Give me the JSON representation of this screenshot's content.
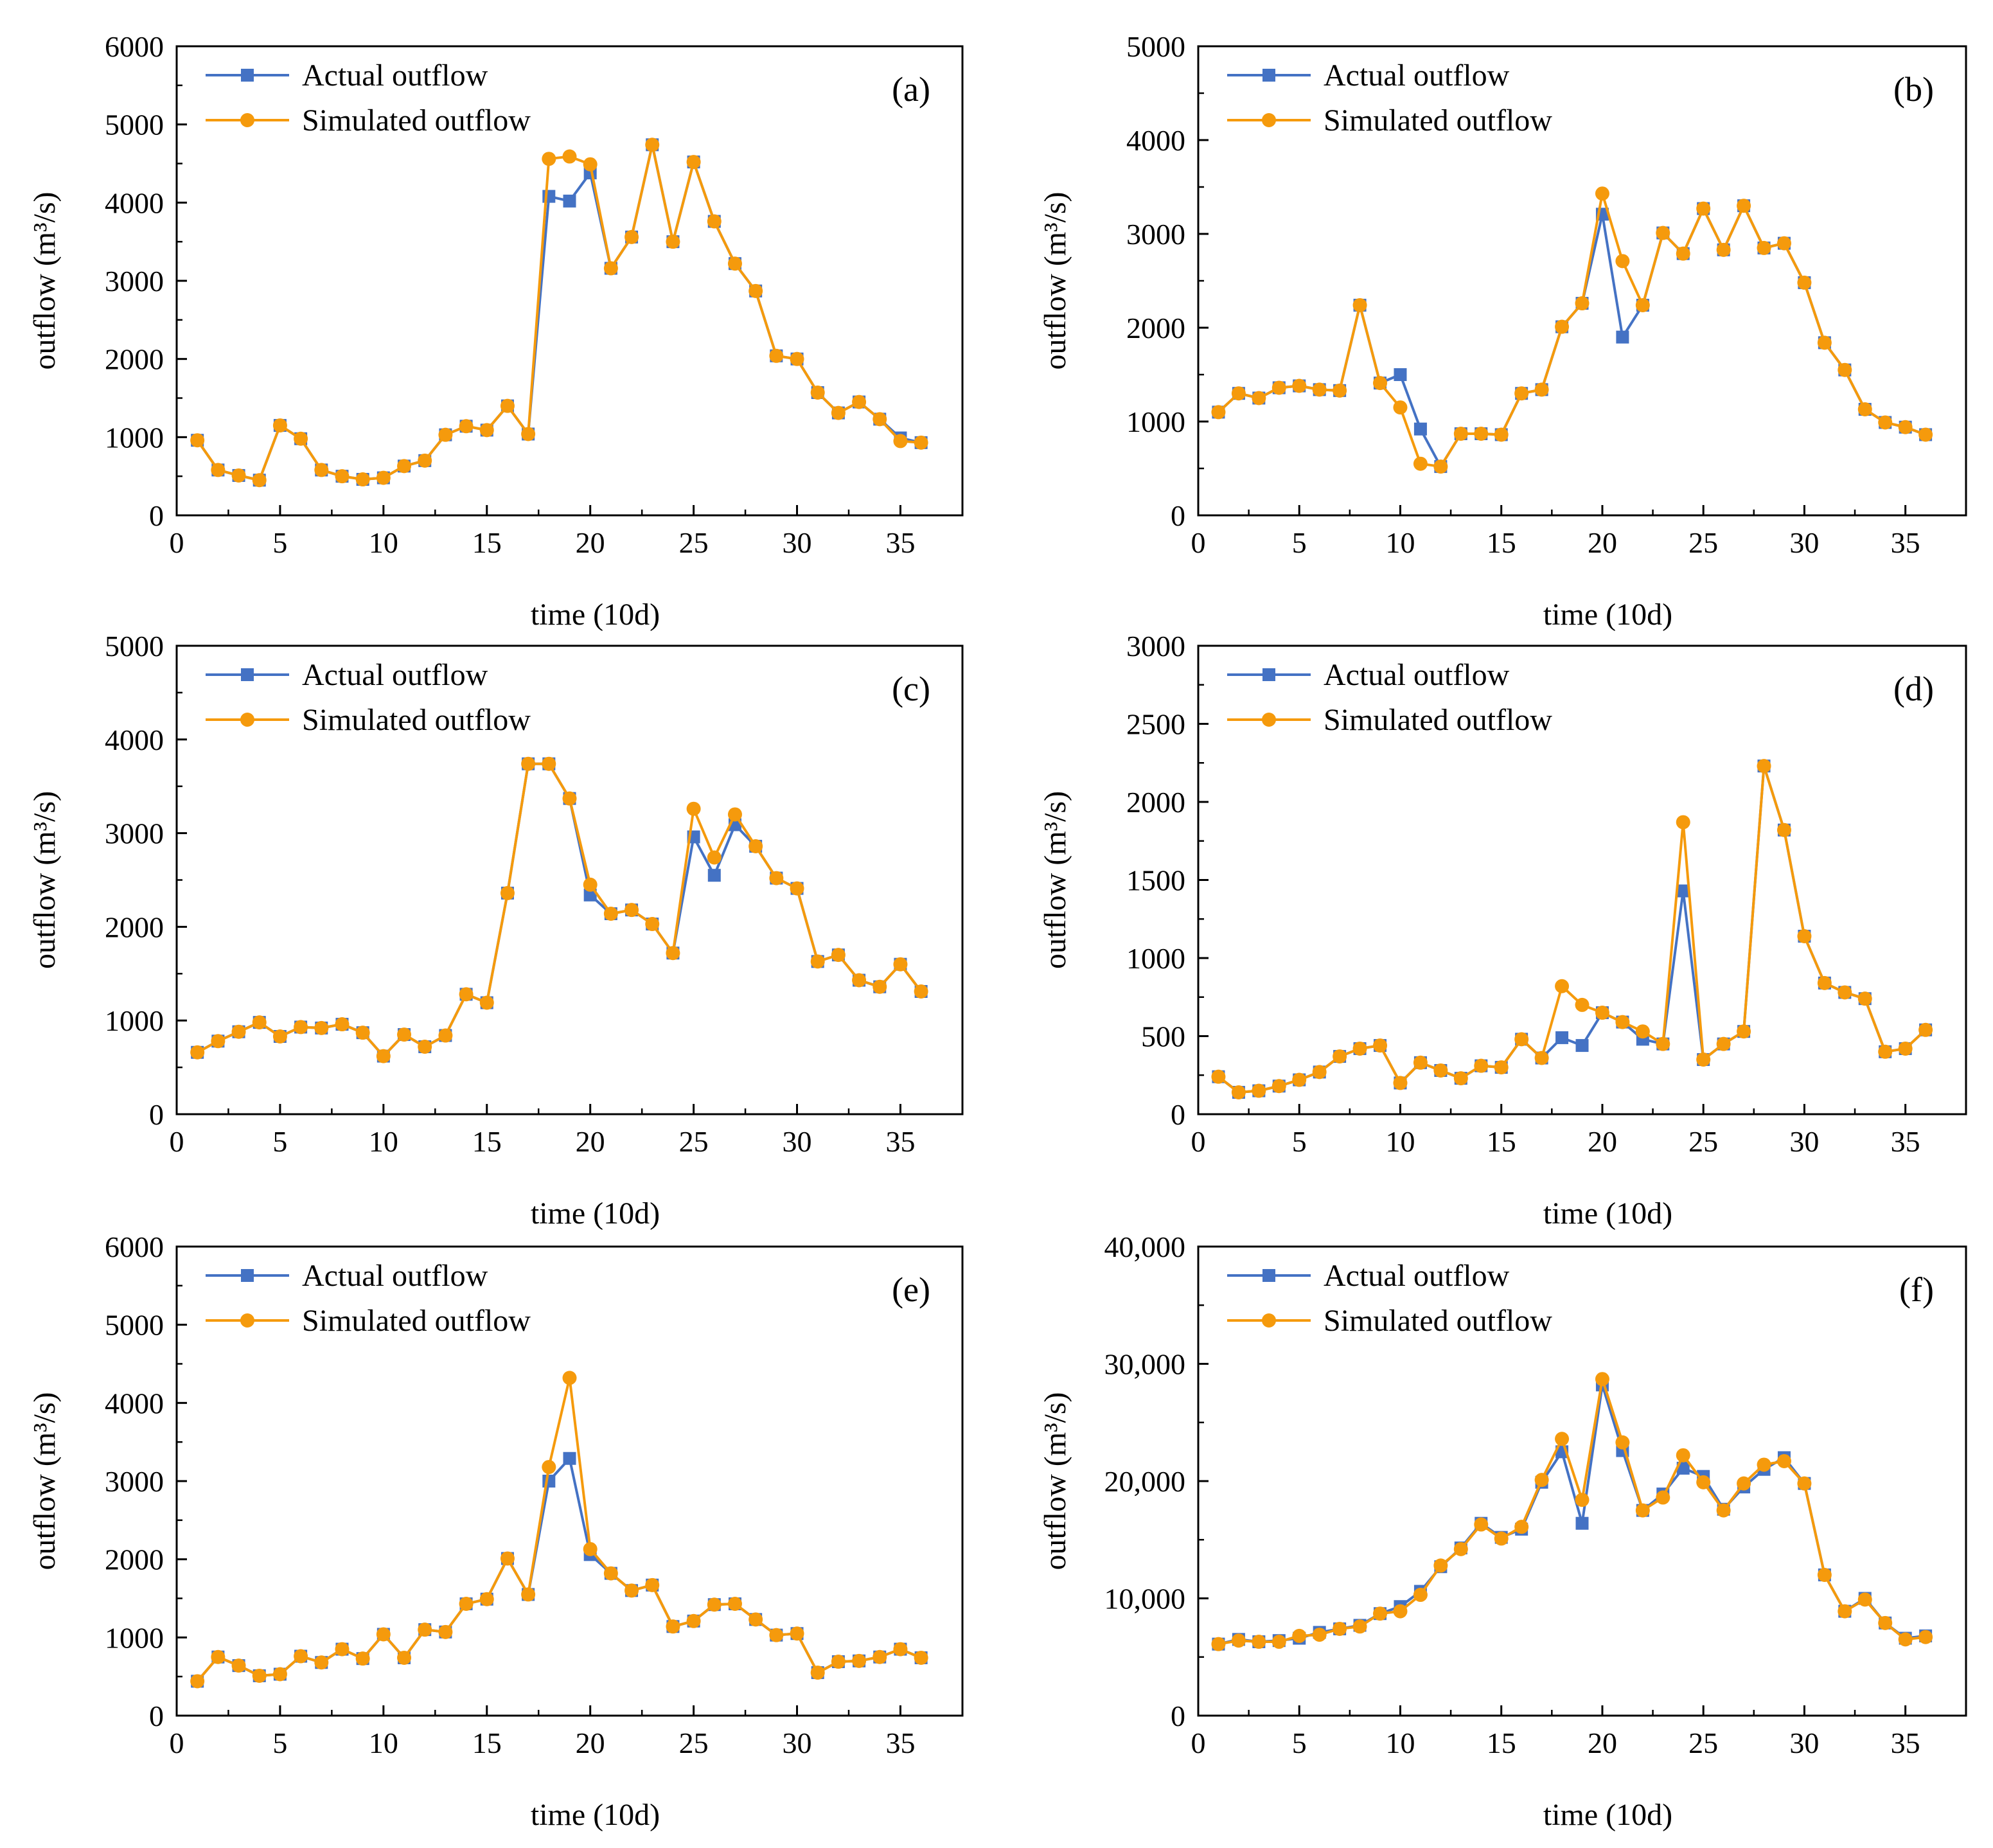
{
  "figure": {
    "colors": {
      "actual": "#4472c4",
      "simulated": "#f59a0c",
      "axis": "#000000",
      "background": "#ffffff"
    },
    "markers": {
      "actual": "square",
      "simulated": "circle"
    }
  },
  "chart_data": [
    {
      "type": "line",
      "label": "(a)",
      "xlabel": "time (10d)",
      "ylabel": "outflow (m³/s)",
      "xlim": [
        0,
        38
      ],
      "ylim": [
        0,
        6000
      ],
      "xticks": [
        0,
        5,
        10,
        15,
        20,
        25,
        30,
        35
      ],
      "yticks": [
        0,
        1000,
        2000,
        3000,
        4000,
        5000,
        6000
      ],
      "ytick_labels": [
        "0",
        "1000",
        "2000",
        "3000",
        "4000",
        "5000",
        "6000"
      ],
      "grid": false,
      "legend": "top-left",
      "x": [
        1,
        2,
        3,
        4,
        5,
        6,
        7,
        8,
        9,
        10,
        11,
        12,
        13,
        14,
        15,
        16,
        17,
        18,
        19,
        20,
        21,
        22,
        23,
        24,
        25,
        26,
        27,
        28,
        29,
        30,
        31,
        32,
        33,
        34,
        35,
        36
      ],
      "series": [
        {
          "name": "Actual outflow",
          "values": [
            960,
            580,
            510,
            450,
            1150,
            980,
            580,
            500,
            460,
            480,
            630,
            700,
            1030,
            1140,
            1090,
            1400,
            1040,
            4080,
            4020,
            4380,
            3160,
            3560,
            4740,
            3500,
            4520,
            3760,
            3220,
            2870,
            2040,
            2000,
            1570,
            1310,
            1450,
            1230,
            990,
            930
          ]
        },
        {
          "name": "Simulated outflow",
          "values": [
            960,
            580,
            510,
            450,
            1150,
            980,
            580,
            500,
            460,
            480,
            630,
            700,
            1030,
            1140,
            1090,
            1400,
            1040,
            4560,
            4590,
            4490,
            3160,
            3560,
            4740,
            3500,
            4520,
            3760,
            3220,
            2870,
            2040,
            2000,
            1570,
            1310,
            1450,
            1230,
            950,
            930
          ]
        }
      ]
    },
    {
      "type": "line",
      "label": "(b)",
      "xlabel": "time (10d)",
      "ylabel": "outflow (m³/s)",
      "xlim": [
        0,
        38
      ],
      "ylim": [
        0,
        5000
      ],
      "xticks": [
        0,
        5,
        10,
        15,
        20,
        25,
        30,
        35
      ],
      "yticks": [
        0,
        1000,
        2000,
        3000,
        4000,
        5000
      ],
      "ytick_labels": [
        "0",
        "1000",
        "2000",
        "3000",
        "4000",
        "5000"
      ],
      "grid": false,
      "legend": "top-left",
      "x": [
        1,
        2,
        3,
        4,
        5,
        6,
        7,
        8,
        9,
        10,
        11,
        12,
        13,
        14,
        15,
        16,
        17,
        18,
        19,
        20,
        21,
        22,
        23,
        24,
        25,
        26,
        27,
        28,
        29,
        30,
        31,
        32,
        33,
        34,
        35,
        36
      ],
      "series": [
        {
          "name": "Actual outflow",
          "values": [
            1100,
            1300,
            1250,
            1360,
            1380,
            1340,
            1330,
            2240,
            1410,
            1500,
            920,
            520,
            870,
            870,
            860,
            1300,
            1340,
            2010,
            2260,
            3210,
            1900,
            2240,
            3010,
            2790,
            3270,
            2830,
            3300,
            2850,
            2900,
            2480,
            1840,
            1550,
            1130,
            990,
            940,
            860
          ]
        },
        {
          "name": "Simulated outflow",
          "values": [
            1100,
            1300,
            1250,
            1360,
            1380,
            1340,
            1330,
            2240,
            1410,
            1150,
            550,
            520,
            870,
            870,
            860,
            1300,
            1340,
            2010,
            2260,
            3430,
            2710,
            2240,
            3010,
            2790,
            3270,
            2830,
            3300,
            2850,
            2900,
            2480,
            1840,
            1550,
            1130,
            990,
            940,
            860
          ]
        }
      ]
    },
    {
      "type": "line",
      "label": "(c)",
      "xlabel": "time (10d)",
      "ylabel": "outflow (m³/s)",
      "xlim": [
        0,
        38
      ],
      "ylim": [
        0,
        5000
      ],
      "xticks": [
        0,
        5,
        10,
        15,
        20,
        25,
        30,
        35
      ],
      "yticks": [
        0,
        1000,
        2000,
        3000,
        4000,
        5000
      ],
      "ytick_labels": [
        "0",
        "1000",
        "2000",
        "3000",
        "4000",
        "5000"
      ],
      "grid": false,
      "legend": "top-left",
      "x": [
        1,
        2,
        3,
        4,
        5,
        6,
        7,
        8,
        9,
        10,
        11,
        12,
        13,
        14,
        15,
        16,
        17,
        18,
        19,
        20,
        21,
        22,
        23,
        24,
        25,
        26,
        27,
        28,
        29,
        30,
        31,
        32,
        33,
        34,
        35,
        36
      ],
      "series": [
        {
          "name": "Actual outflow",
          "values": [
            660,
            780,
            880,
            980,
            830,
            930,
            920,
            960,
            870,
            620,
            850,
            720,
            840,
            1280,
            1190,
            2360,
            3740,
            3740,
            3370,
            2340,
            2140,
            2180,
            2030,
            1720,
            2960,
            2550,
            3090,
            2860,
            2520,
            2410,
            1630,
            1700,
            1430,
            1360,
            1600,
            1310
          ]
        },
        {
          "name": "Simulated outflow",
          "values": [
            660,
            780,
            880,
            980,
            830,
            930,
            920,
            960,
            870,
            620,
            850,
            720,
            840,
            1280,
            1190,
            2360,
            3740,
            3740,
            3370,
            2450,
            2140,
            2180,
            2030,
            1720,
            3260,
            2740,
            3200,
            2860,
            2520,
            2410,
            1630,
            1700,
            1430,
            1360,
            1600,
            1310
          ]
        }
      ]
    },
    {
      "type": "line",
      "label": "(d)",
      "xlabel": "time (10d)",
      "ylabel": "outflow (m³/s)",
      "xlim": [
        0,
        38
      ],
      "ylim": [
        0,
        3000
      ],
      "xticks": [
        0,
        5,
        10,
        15,
        20,
        25,
        30,
        35
      ],
      "yticks": [
        0,
        500,
        1000,
        1500,
        2000,
        2500,
        3000
      ],
      "ytick_labels": [
        "0",
        "500",
        "1000",
        "1500",
        "2000",
        "2500",
        "3000"
      ],
      "grid": false,
      "legend": "top-left",
      "x": [
        1,
        2,
        3,
        4,
        5,
        6,
        7,
        8,
        9,
        10,
        11,
        12,
        13,
        14,
        15,
        16,
        17,
        18,
        19,
        20,
        21,
        22,
        23,
        24,
        25,
        26,
        27,
        28,
        29,
        30,
        31,
        32,
        33,
        34,
        35,
        36
      ],
      "series": [
        {
          "name": "Actual outflow",
          "values": [
            240,
            140,
            150,
            180,
            220,
            270,
            370,
            420,
            440,
            200,
            330,
            280,
            230,
            310,
            300,
            480,
            360,
            490,
            440,
            650,
            590,
            480,
            450,
            1430,
            350,
            450,
            530,
            2230,
            1820,
            1140,
            840,
            780,
            740,
            400,
            420,
            540
          ]
        },
        {
          "name": "Simulated outflow",
          "values": [
            240,
            140,
            150,
            180,
            220,
            270,
            370,
            420,
            440,
            200,
            330,
            280,
            230,
            310,
            300,
            480,
            360,
            820,
            700,
            650,
            590,
            530,
            450,
            1870,
            350,
            450,
            530,
            2230,
            1820,
            1140,
            840,
            780,
            740,
            400,
            420,
            540
          ]
        }
      ]
    },
    {
      "type": "line",
      "label": "(e)",
      "xlabel": "time (10d)",
      "ylabel": "outflow (m³/s)",
      "xlim": [
        0,
        38
      ],
      "ylim": [
        0,
        6000
      ],
      "xticks": [
        0,
        5,
        10,
        15,
        20,
        25,
        30,
        35
      ],
      "yticks": [
        0,
        1000,
        2000,
        3000,
        4000,
        5000,
        6000
      ],
      "ytick_labels": [
        "0",
        "1000",
        "2000",
        "3000",
        "4000",
        "5000",
        "6000"
      ],
      "grid": false,
      "legend": "top-left",
      "x": [
        1,
        2,
        3,
        4,
        5,
        6,
        7,
        8,
        9,
        10,
        11,
        12,
        13,
        14,
        15,
        16,
        17,
        18,
        19,
        20,
        21,
        22,
        23,
        24,
        25,
        26,
        27,
        28,
        29,
        30,
        31,
        32,
        33,
        34,
        35,
        36
      ],
      "series": [
        {
          "name": "Actual outflow",
          "values": [
            440,
            750,
            640,
            510,
            530,
            760,
            680,
            850,
            730,
            1040,
            740,
            1100,
            1070,
            1430,
            1490,
            2010,
            1550,
            3000,
            3290,
            2060,
            1820,
            1600,
            1670,
            1140,
            1210,
            1420,
            1430,
            1230,
            1030,
            1050,
            550,
            690,
            700,
            750,
            850,
            740
          ]
        },
        {
          "name": "Simulated outflow",
          "values": [
            440,
            750,
            640,
            510,
            530,
            760,
            680,
            850,
            730,
            1040,
            740,
            1100,
            1070,
            1430,
            1490,
            2010,
            1550,
            3180,
            4320,
            2130,
            1820,
            1600,
            1670,
            1140,
            1210,
            1420,
            1430,
            1230,
            1030,
            1050,
            550,
            690,
            700,
            750,
            850,
            740
          ]
        }
      ]
    },
    {
      "type": "line",
      "label": "(f)",
      "xlabel": "time (10d)",
      "ylabel": "outflow (m³/s)",
      "xlim": [
        0,
        38
      ],
      "ylim": [
        0,
        40000
      ],
      "xticks": [
        0,
        5,
        10,
        15,
        20,
        25,
        30,
        35
      ],
      "yticks": [
        0,
        10000,
        20000,
        30000,
        40000
      ],
      "ytick_labels": [
        "0",
        "10,000",
        "20,000",
        "30,000",
        "40,000"
      ],
      "grid": false,
      "legend": "top-left",
      "x": [
        1,
        2,
        3,
        4,
        5,
        6,
        7,
        8,
        9,
        10,
        11,
        12,
        13,
        14,
        15,
        16,
        17,
        18,
        19,
        20,
        21,
        22,
        23,
        24,
        25,
        26,
        27,
        28,
        29,
        30,
        31,
        32,
        33,
        34,
        35,
        36
      ],
      "series": [
        {
          "name": "Actual outflow",
          "values": [
            6100,
            6500,
            6300,
            6400,
            6600,
            7100,
            7400,
            7700,
            8700,
            9300,
            10600,
            12700,
            14300,
            16400,
            15200,
            15900,
            19900,
            22500,
            16400,
            28200,
            22600,
            17500,
            18900,
            21100,
            20400,
            17600,
            19500,
            21000,
            22000,
            19800,
            12000,
            8900,
            10000,
            7900,
            6600,
            6800
          ]
        },
        {
          "name": "Simulated outflow",
          "values": [
            6100,
            6400,
            6300,
            6300,
            6800,
            6900,
            7400,
            7600,
            8700,
            8900,
            10300,
            12800,
            14200,
            16300,
            15100,
            16100,
            20100,
            23600,
            18400,
            28700,
            23300,
            17500,
            18600,
            22200,
            19900,
            17500,
            19800,
            21400,
            21700,
            19800,
            12000,
            8900,
            9900,
            7900,
            6500,
            6700
          ]
        }
      ]
    }
  ]
}
